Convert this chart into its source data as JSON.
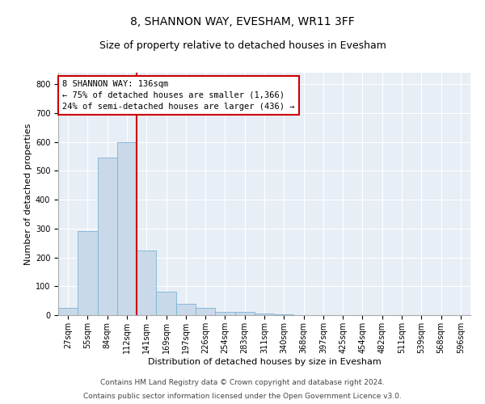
{
  "title1": "8, SHANNON WAY, EVESHAM, WR11 3FF",
  "title2": "Size of property relative to detached houses in Evesham",
  "xlabel": "Distribution of detached houses by size in Evesham",
  "ylabel": "Number of detached properties",
  "categories": [
    "27sqm",
    "55sqm",
    "84sqm",
    "112sqm",
    "141sqm",
    "169sqm",
    "197sqm",
    "226sqm",
    "254sqm",
    "283sqm",
    "311sqm",
    "340sqm",
    "368sqm",
    "397sqm",
    "425sqm",
    "454sqm",
    "482sqm",
    "511sqm",
    "539sqm",
    "568sqm",
    "596sqm"
  ],
  "values": [
    25,
    290,
    545,
    600,
    225,
    80,
    38,
    25,
    12,
    10,
    5,
    3,
    1,
    0,
    0,
    0,
    0,
    0,
    0,
    0,
    0
  ],
  "bar_color": "#c9d9ea",
  "bar_edge_color": "#7ab4d4",
  "vline_color": "#cc0000",
  "annotation_text": "8 SHANNON WAY: 136sqm\n← 75% of detached houses are smaller (1,366)\n24% of semi-detached houses are larger (436) →",
  "annotation_box_color": "#ffffff",
  "annotation_box_edge": "#cc0000",
  "ylim": [
    0,
    840
  ],
  "yticks": [
    0,
    100,
    200,
    300,
    400,
    500,
    600,
    700,
    800
  ],
  "plot_bg_color": "#e8eef6",
  "footer_line1": "Contains HM Land Registry data © Crown copyright and database right 2024.",
  "footer_line2": "Contains public sector information licensed under the Open Government Licence v3.0.",
  "title1_fontsize": 10,
  "title2_fontsize": 9,
  "annotation_fontsize": 7.5,
  "footer_fontsize": 6.5,
  "ylabel_fontsize": 8,
  "xlabel_fontsize": 8,
  "tick_fontsize": 7
}
